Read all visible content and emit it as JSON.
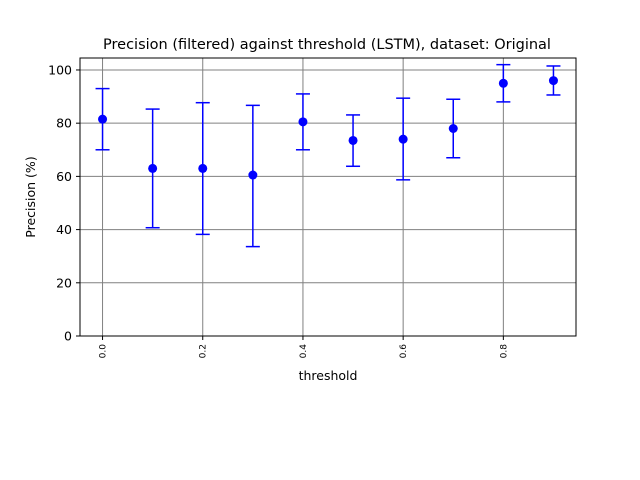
{
  "chart_data": {
    "type": "scatter",
    "title": "Precision (filtered) against threshold (LSTM), dataset: Original",
    "xlabel": "threshold",
    "ylabel": "Precision (%)",
    "xlim": [
      -0.045,
      0.945
    ],
    "ylim": [
      0,
      104.5
    ],
    "grid": true,
    "color": "#0000ff",
    "grid_color": "#808080",
    "x_ticks": [
      0.0,
      0.2,
      0.4,
      0.6,
      0.8
    ],
    "x_tick_labels": [
      "0.0",
      "0.2",
      "0.4",
      "0.6",
      "0.8"
    ],
    "y_ticks": [
      0,
      20,
      40,
      60,
      80,
      100
    ],
    "y_tick_labels": [
      "0",
      "20",
      "40",
      "60",
      "80",
      "100"
    ],
    "series": [
      {
        "x": [
          0.0,
          0.1,
          0.2,
          0.3,
          0.4,
          0.5,
          0.6,
          0.7,
          0.8,
          0.9
        ],
        "y": [
          81.5,
          63.0,
          63.0,
          60.5,
          80.5,
          73.5,
          74.0,
          78.0,
          95.0,
          96.0
        ],
        "y_low": [
          70.0,
          40.7,
          38.2,
          33.6,
          70.0,
          63.8,
          58.7,
          67.0,
          88.0,
          90.6
        ],
        "y_high": [
          93.0,
          85.3,
          87.7,
          86.7,
          91.0,
          83.1,
          89.4,
          89.0,
          102.0,
          101.5
        ]
      }
    ]
  }
}
